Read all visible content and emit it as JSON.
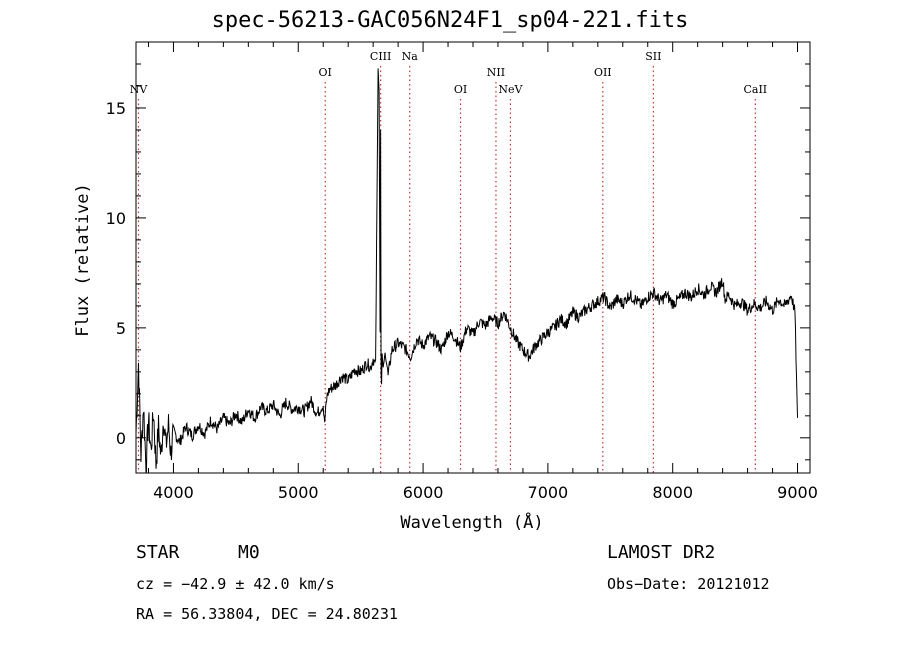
{
  "chart_data": {
    "type": "line",
    "title": "spec-56213-GAC056N24F1_sp04-221.fits",
    "xlabel": "Wavelength (Å)",
    "ylabel": "Flux (relative)",
    "xlim": [
      3700,
      9100
    ],
    "ylim": [
      -1.6,
      18.0
    ],
    "xticks": [
      4000,
      5000,
      6000,
      7000,
      8000,
      9000
    ],
    "yticks": [
      0,
      5,
      10,
      15
    ],
    "grid": false,
    "legend": "none",
    "line_color": "#000000",
    "marker_color": "#cc3333",
    "series": [
      {
        "x": [
          3700,
          3720,
          3740,
          3760,
          3780,
          3800,
          3820,
          3840,
          3860,
          3880,
          3900,
          3920,
          3940,
          3960,
          3980,
          4000,
          4050,
          4100,
          4150,
          4200,
          4250,
          4300,
          4350,
          4400,
          4450,
          4500,
          4550,
          4600,
          4650,
          4700,
          4750,
          4800,
          4850,
          4900,
          4950,
          5000,
          5050,
          5100,
          5150,
          5200,
          5210,
          5230,
          5250,
          5300,
          5350,
          5400,
          5450,
          5500,
          5550,
          5580,
          5600,
          5620,
          5640,
          5650,
          5655,
          5660,
          5665,
          5670,
          5680,
          5700,
          5720,
          5750,
          5800,
          5850,
          5900,
          5950,
          6000,
          6050,
          6100,
          6150,
          6200,
          6250,
          6300,
          6350,
          6400,
          6450,
          6500,
          6550,
          6600,
          6650,
          6700,
          6750,
          6800,
          6850,
          6900,
          6950,
          7000,
          7050,
          7100,
          7150,
          7200,
          7250,
          7300,
          7350,
          7400,
          7450,
          7500,
          7550,
          7600,
          7650,
          7700,
          7750,
          7800,
          7850,
          7900,
          7950,
          8000,
          8050,
          8100,
          8150,
          8200,
          8250,
          8300,
          8350,
          8400,
          8420,
          8450,
          8500,
          8550,
          8600,
          8650,
          8700,
          8750,
          8800,
          8850,
          8900,
          8950,
          8980,
          9000
        ],
        "y": [
          0.2,
          3.4,
          -0.8,
          1.5,
          -1.3,
          0.8,
          -0.6,
          1.2,
          -1.2,
          0.5,
          -0.9,
          1.0,
          -0.4,
          0.6,
          -0.7,
          0.3,
          -0.2,
          0.5,
          0.1,
          0.6,
          0.2,
          0.8,
          0.4,
          0.9,
          0.6,
          1.1,
          0.7,
          1.3,
          0.9,
          1.4,
          1.2,
          1.5,
          1.0,
          1.6,
          1.3,
          1.4,
          1.2,
          1.7,
          1.1,
          1.5,
          0.6,
          1.9,
          2.2,
          2.4,
          2.8,
          2.6,
          3.1,
          3.0,
          3.4,
          3.2,
          3.6,
          3.3,
          16.8,
          15.5,
          2.5,
          14.0,
          0.1,
          4.0,
          3.2,
          3.9,
          2.8,
          4.0,
          4.3,
          4.1,
          3.7,
          4.5,
          4.2,
          4.6,
          4.4,
          4.0,
          4.8,
          4.6,
          4.1,
          5.0,
          4.7,
          5.3,
          5.1,
          5.5,
          5.2,
          5.7,
          5.0,
          4.4,
          4.0,
          3.7,
          4.2,
          4.5,
          4.8,
          5.0,
          5.4,
          5.2,
          5.7,
          5.5,
          5.8,
          6.0,
          6.2,
          6.4,
          5.9,
          6.3,
          6.1,
          6.5,
          6.3,
          6.0,
          6.4,
          6.6,
          6.2,
          6.5,
          6.1,
          6.3,
          6.6,
          6.4,
          6.8,
          6.5,
          6.9,
          6.6,
          7.2,
          6.3,
          6.5,
          6.0,
          6.2,
          5.8,
          6.1,
          5.9,
          6.2,
          5.8,
          6.3,
          6.0,
          6.5,
          5.7,
          0.7
        ]
      }
    ],
    "lines": [
      {
        "label": "NV",
        "x": 3720,
        "level": 2
      },
      {
        "label": "OI",
        "x": 5216,
        "level": 1
      },
      {
        "label": "CIII",
        "x": 5660,
        "level": 0
      },
      {
        "label": "Na",
        "x": 5893,
        "level": 0
      },
      {
        "label": "OI",
        "x": 6300,
        "level": 2
      },
      {
        "label": "NII",
        "x": 6584,
        "level": 1
      },
      {
        "label": "NeV",
        "x": 6700,
        "level": 2
      },
      {
        "label": "OII",
        "x": 7440,
        "level": 1
      },
      {
        "label": "SII",
        "x": 7845,
        "level": 0
      },
      {
        "label": "CaII",
        "x": 8662,
        "level": 2
      }
    ]
  },
  "info": {
    "class": "STAR",
    "subclass": "M0",
    "survey": "LAMOST DR2",
    "cz": "cz = −42.9 ± 42.0 km/s",
    "obs_date": "Obs−Date: 20121012",
    "coords": "RA =  56.33804, DEC =  24.80231"
  }
}
